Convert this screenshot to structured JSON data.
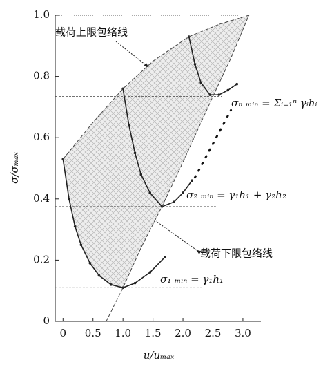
{
  "chart_data": {
    "type": "line",
    "xlabel": "u/uₘₐₓ",
    "ylabel": "σ/σₘₐₓ",
    "xlim": [
      -0.13,
      3.3
    ],
    "ylim": [
      0,
      1.0
    ],
    "xticks": [
      0,
      0.5,
      {
        "value": 1,
        "label": "1.0"
      },
      1.5,
      {
        "value": 2,
        "label": "2.0"
      },
      2.5,
      {
        "value": 3,
        "label": "3.0"
      }
    ],
    "yticks": [
      0,
      0.2,
      0.4,
      0.6,
      0.8,
      {
        "value": 1,
        "label": "1.0"
      }
    ],
    "series": [
      {
        "color": "#222222",
        "style": "solid",
        "x": [
          0,
          0.1,
          0.2,
          0.3,
          0.45,
          0.6,
          0.8,
          1.0,
          1.2,
          1.45,
          1.7
        ],
        "values": [
          0.53,
          0.4,
          0.31,
          0.25,
          0.19,
          0.15,
          0.12,
          0.11,
          0.125,
          0.16,
          0.21
        ]
      },
      {
        "color": "#222222",
        "style": "solid",
        "x": [
          1.0,
          1.1,
          1.2,
          1.3,
          1.45,
          1.65,
          1.85,
          2.0,
          2.15
        ],
        "values": [
          0.76,
          0.64,
          0.55,
          0.48,
          0.42,
          0.375,
          0.39,
          0.42,
          0.46
        ]
      },
      {
        "color": "#222222",
        "style": "solid",
        "x": [
          2.1,
          2.2,
          2.3,
          2.45,
          2.6,
          2.75,
          2.9
        ],
        "values": [
          0.93,
          0.84,
          0.78,
          0.74,
          0.74,
          0.755,
          0.775
        ]
      },
      {
        "color": "#444444",
        "style": "dashed",
        "x": [
          0,
          0.5,
          1.0,
          1.5,
          2.1,
          2.6,
          3.1
        ],
        "values": [
          0.53,
          0.65,
          0.76,
          0.85,
          0.93,
          0.97,
          1.0
        ]
      },
      {
        "color": "#444444",
        "style": "dashed",
        "x": [
          0.72,
          1.0,
          1.3,
          1.65,
          2.0,
          2.5,
          2.8,
          3.1
        ],
        "values": [
          0,
          0.11,
          0.24,
          0.375,
          0.52,
          0.735,
          0.86,
          1.0
        ]
      },
      {
        "color": "#111111",
        "style": "dotted",
        "x": [
          2.2,
          2.8
        ],
        "values": [
          0.47,
          0.69
        ]
      }
    ],
    "hlines": [
      0.735,
      0.375,
      0.11
    ],
    "annotations": [
      "载荷上限包络线",
      "载荷下限包络线",
      "σₙ ₘᵢₙ = Σᵢ₌₁ⁿ γᵢhᵢ",
      "σ₂ ₘᵢₙ = γ₁h₁ + γ₂h₂",
      "σ₁ ₘᵢₙ = γ₁h₁"
    ]
  }
}
